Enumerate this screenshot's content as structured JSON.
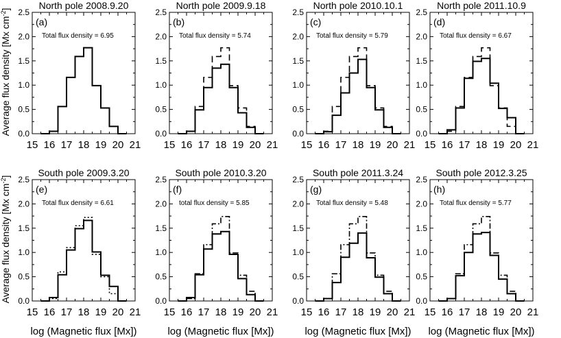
{
  "figure": {
    "ylabel_top": "Average flux density [Mx cm",
    "ylabel_bottom": "Average flux density [Mx cm",
    "ylabel_sup": "-2",
    "ylabel_close": "]",
    "xlabel": "log (Magnetic flux [Mx])"
  },
  "chart_data": [
    {
      "type": "histogram-step",
      "title": "North pole 2008.9.20",
      "panel_label": "(a)",
      "annotation": "Total flux density = 6.95",
      "bins": [
        15.5,
        16.0,
        16.5,
        17.0,
        17.5,
        18.0,
        18.5,
        19.0,
        19.5,
        20.0
      ],
      "series": [
        {
          "style": "solid",
          "values": [
            0.0,
            0.05,
            0.56,
            1.16,
            1.59,
            1.77,
            0.99,
            0.53,
            0.15,
            0.0
          ]
        }
      ],
      "xlim": [
        15,
        21
      ],
      "ylim": [
        0,
        2.5
      ],
      "xticks": [
        "15",
        "16",
        "17",
        "18",
        "19",
        "20",
        "21"
      ],
      "yticks": [
        "0.0",
        "0.5",
        "1.0",
        "1.5",
        "2.0",
        "2.5"
      ]
    },
    {
      "type": "histogram-step",
      "title": "North pole 2009.9.18",
      "panel_label": "(b)",
      "annotation": "Total flux density = 5.74",
      "bins": [
        15.5,
        16.0,
        16.5,
        17.0,
        17.5,
        18.0,
        18.5,
        19.0,
        19.5,
        20.0
      ],
      "series": [
        {
          "style": "solid",
          "values": [
            0.0,
            0.05,
            0.49,
            0.95,
            1.35,
            1.43,
            0.95,
            0.43,
            0.13,
            0.0
          ]
        },
        {
          "style": "dashed",
          "values": [
            0.0,
            0.05,
            0.56,
            1.16,
            1.59,
            1.77,
            0.99,
            0.53,
            0.15,
            0.0
          ]
        }
      ],
      "xlim": [
        15,
        21
      ],
      "ylim": [
        0,
        2.5
      ],
      "xticks": [
        "15",
        "16",
        "17",
        "18",
        "19",
        "20",
        "21"
      ],
      "yticks": [
        "0.0",
        "0.5",
        "1.0",
        "1.5",
        "2.0",
        "2.5"
      ]
    },
    {
      "type": "histogram-step",
      "title": "North pole 2010.10.1",
      "panel_label": "(c)",
      "annotation": "Total flux density = 5.79",
      "bins": [
        15.5,
        16.0,
        16.5,
        17.0,
        17.5,
        18.0,
        18.5,
        19.0,
        19.5,
        20.0
      ],
      "series": [
        {
          "style": "solid",
          "values": [
            0.0,
            0.04,
            0.38,
            0.84,
            1.25,
            1.53,
            0.95,
            0.49,
            0.13,
            0.0
          ]
        },
        {
          "style": "dashed",
          "values": [
            0.0,
            0.05,
            0.56,
            1.16,
            1.59,
            1.77,
            0.99,
            0.53,
            0.15,
            0.0
          ]
        }
      ],
      "xlim": [
        15,
        21
      ],
      "ylim": [
        0,
        2.5
      ],
      "xticks": [
        "15",
        "16",
        "17",
        "18",
        "19",
        "20",
        "21"
      ],
      "yticks": [
        "0.0",
        "0.5",
        "1.0",
        "1.5",
        "2.0",
        "2.5"
      ]
    },
    {
      "type": "histogram-step",
      "title": "North pole 2011.10.9",
      "panel_label": "(d)",
      "annotation": "Total flux density = 6.67",
      "bins": [
        15.5,
        16.0,
        16.5,
        17.0,
        17.5,
        18.0,
        18.5,
        19.0,
        19.5,
        20.0
      ],
      "series": [
        {
          "style": "solid",
          "values": [
            0.0,
            0.08,
            0.53,
            1.14,
            1.49,
            1.55,
            1.04,
            0.52,
            0.33,
            0.0
          ]
        },
        {
          "style": "dashed",
          "values": [
            0.0,
            0.05,
            0.56,
            1.16,
            1.59,
            1.77,
            0.99,
            0.53,
            0.15,
            0.0
          ]
        }
      ],
      "xlim": [
        15,
        21
      ],
      "ylim": [
        0,
        2.5
      ],
      "xticks": [
        "15",
        "16",
        "17",
        "18",
        "19",
        "20",
        "21"
      ],
      "yticks": [
        "0.0",
        "0.5",
        "1.0",
        "1.5",
        "2.0",
        "2.5"
      ]
    },
    {
      "type": "histogram-step",
      "title": "South pole 2009.3.20",
      "panel_label": "(e)",
      "annotation": "Total flux density = 6.61",
      "bins": [
        15.5,
        16.0,
        16.5,
        17.0,
        17.5,
        18.0,
        18.5,
        19.0,
        19.5,
        20.0
      ],
      "series": [
        {
          "style": "solid",
          "values": [
            0.0,
            0.07,
            0.54,
            1.05,
            1.49,
            1.66,
            1.01,
            0.53,
            0.3,
            0.0
          ]
        },
        {
          "style": "dotted",
          "values": [
            0.0,
            0.05,
            0.6,
            1.1,
            1.55,
            1.72,
            0.96,
            0.5,
            0.15,
            0.0
          ]
        }
      ],
      "xlim": [
        15,
        21
      ],
      "ylim": [
        0,
        2.5
      ],
      "xticks": [
        "15",
        "16",
        "17",
        "18",
        "19",
        "20",
        "21"
      ],
      "yticks": [
        "0.0",
        "0.5",
        "1.0",
        "1.5",
        "2.0",
        "2.5"
      ]
    },
    {
      "type": "histogram-step",
      "title": "South pole 2010.3.20",
      "panel_label": "(f)",
      "annotation": "total flux density = 5.85",
      "bins": [
        15.5,
        16.0,
        16.5,
        17.0,
        17.5,
        18.0,
        18.5,
        19.0,
        19.5,
        20.0
      ],
      "series": [
        {
          "style": "solid",
          "values": [
            0.0,
            0.07,
            0.54,
            1.07,
            1.38,
            1.43,
            0.96,
            0.46,
            0.13,
            0.0
          ]
        },
        {
          "style": "dashdot",
          "values": [
            0.0,
            0.05,
            0.56,
            1.16,
            1.59,
            1.74,
            0.99,
            0.53,
            0.2,
            0.0
          ]
        }
      ],
      "xlim": [
        15,
        21
      ],
      "ylim": [
        0,
        2.5
      ],
      "xticks": [
        "15",
        "16",
        "17",
        "18",
        "19",
        "20",
        "21"
      ],
      "yticks": [
        "0.0",
        "0.5",
        "1.0",
        "1.5",
        "2.0",
        "2.5"
      ]
    },
    {
      "type": "histogram-step",
      "title": "South pole 2011.3.24",
      "panel_label": "(g)",
      "annotation": "Total flux density = 5.48",
      "bins": [
        15.5,
        16.0,
        16.5,
        17.0,
        17.5,
        18.0,
        18.5,
        19.0,
        19.5,
        20.0
      ],
      "series": [
        {
          "style": "solid",
          "values": [
            0.0,
            0.05,
            0.38,
            0.9,
            1.19,
            1.4,
            0.89,
            0.49,
            0.15,
            0.0
          ]
        },
        {
          "style": "dashdot",
          "values": [
            0.0,
            0.05,
            0.56,
            1.16,
            1.59,
            1.74,
            0.99,
            0.53,
            0.2,
            0.0
          ]
        }
      ],
      "xlim": [
        15,
        21
      ],
      "ylim": [
        0,
        2.5
      ],
      "xticks": [
        "15",
        "16",
        "17",
        "18",
        "19",
        "20",
        "21"
      ],
      "yticks": [
        "0.0",
        "0.5",
        "1.0",
        "1.5",
        "2.0",
        "2.5"
      ]
    },
    {
      "type": "histogram-step",
      "title": "South pole 2012.3.25",
      "panel_label": "(h)",
      "annotation": "Total flux density = 5.77",
      "bins": [
        15.5,
        16.0,
        16.5,
        17.0,
        17.5,
        18.0,
        18.5,
        19.0,
        19.5,
        20.0
      ],
      "series": [
        {
          "style": "solid",
          "values": [
            0.0,
            0.05,
            0.52,
            1.0,
            1.38,
            1.41,
            0.94,
            0.45,
            0.15,
            0.0
          ]
        },
        {
          "style": "dashdot",
          "values": [
            0.0,
            0.05,
            0.56,
            1.16,
            1.59,
            1.74,
            0.99,
            0.53,
            0.2,
            0.0
          ]
        }
      ],
      "xlim": [
        15,
        21
      ],
      "ylim": [
        0,
        2.5
      ],
      "xticks": [
        "15",
        "16",
        "17",
        "18",
        "19",
        "20",
        "21"
      ],
      "yticks": [
        "0.0",
        "0.5",
        "1.0",
        "1.5",
        "2.0",
        "2.5"
      ]
    }
  ]
}
